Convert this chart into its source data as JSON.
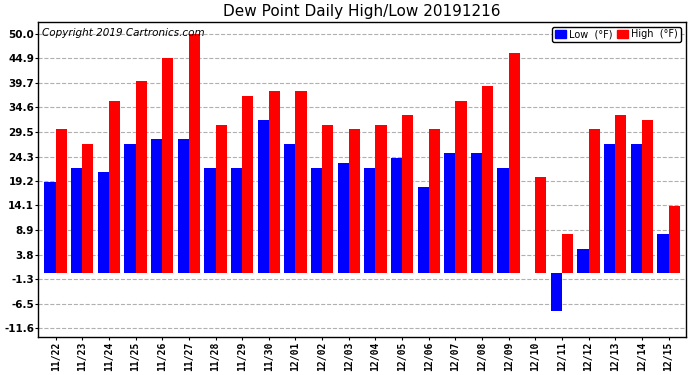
{
  "title": "Dew Point Daily High/Low 20191216",
  "copyright": "Copyright 2019 Cartronics.com",
  "dates": [
    "11/22",
    "11/23",
    "11/24",
    "11/25",
    "11/26",
    "11/27",
    "11/28",
    "11/29",
    "11/30",
    "12/01",
    "12/02",
    "12/03",
    "12/04",
    "12/05",
    "12/06",
    "12/07",
    "12/08",
    "12/09",
    "12/10",
    "12/11",
    "12/12",
    "12/13",
    "12/14",
    "12/15"
  ],
  "high": [
    30,
    27,
    36,
    40,
    45,
    50,
    31,
    37,
    38,
    38,
    31,
    30,
    31,
    33,
    30,
    36,
    39,
    46,
    20,
    8,
    30,
    33,
    32,
    14
  ],
  "low": [
    19,
    22,
    21,
    27,
    28,
    28,
    22,
    22,
    32,
    27,
    22,
    23,
    22,
    24,
    18,
    25,
    25,
    22,
    0,
    -8,
    5,
    27,
    27,
    8
  ],
  "yticks": [
    -11.6,
    -6.5,
    -1.3,
    3.8,
    8.9,
    14.1,
    19.2,
    24.3,
    29.5,
    34.6,
    39.7,
    44.9,
    50.0
  ],
  "ymin": -13.5,
  "ymax": 52.5,
  "bar_width": 0.42,
  "high_color": "#ff0000",
  "low_color": "#0000ff",
  "background_color": "#ffffff",
  "grid_color": "#b0b0b0",
  "legend_high_label": "High  (°F)",
  "legend_low_label": "Low  (°F)",
  "title_fontsize": 11,
  "copyright_fontsize": 7.5,
  "tick_fontsize": 7,
  "ytick_fontsize": 7.5
}
